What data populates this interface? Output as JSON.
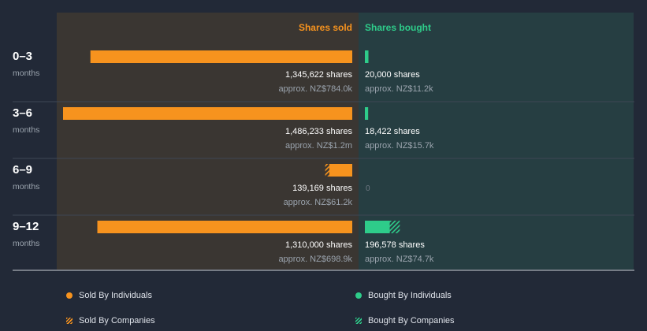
{
  "colors": {
    "background": "#222937",
    "sold_panel": "#3a3632",
    "bought_panel": "#263e42",
    "sold": "#f7931e",
    "bought": "#2ecc8a",
    "muted": "#9aa3ad",
    "text": "#ffffff"
  },
  "chart_data": {
    "type": "bar",
    "orientation": "horizontal-diverging",
    "headers": {
      "sold": "Shares sold",
      "bought": "Shares bought"
    },
    "rows": [
      {
        "period": "0–3",
        "unit": "months",
        "sold_individuals": 1345622,
        "sold_companies": 0,
        "sold_label": "1,345,622 shares",
        "sold_value": "approx. NZ$784.0k",
        "bought_individuals": 20000,
        "bought_companies": 0,
        "bought_label": "20,000 shares",
        "bought_value": "approx. NZ$11.2k"
      },
      {
        "period": "3–6",
        "unit": "months",
        "sold_individuals": 1486233,
        "sold_companies": 0,
        "sold_label": "1,486,233 shares",
        "sold_value": "approx. NZ$1.2m",
        "bought_individuals": 18422,
        "bought_companies": 0,
        "bought_label": "18,422 shares",
        "bought_value": "approx. NZ$15.7k"
      },
      {
        "period": "6–9",
        "unit": "months",
        "sold_individuals": 118000,
        "sold_companies": 21169,
        "sold_label": "139,169 shares",
        "sold_value": "approx. NZ$61.2k",
        "bought_individuals": 0,
        "bought_companies": 0,
        "bought_label": "0",
        "bought_value": ""
      },
      {
        "period": "9–12",
        "unit": "months",
        "sold_individuals": 1310000,
        "sold_companies": 0,
        "sold_label": "1,310,000 shares",
        "sold_value": "approx. NZ$698.9k",
        "bought_individuals": 140000,
        "bought_companies": 56578,
        "bought_label": "196,578 shares",
        "bought_value": "approx. NZ$74.7k"
      }
    ],
    "legend": [
      {
        "label": "Sold By Individuals",
        "style": "dot-sold"
      },
      {
        "label": "Bought By Individuals",
        "style": "dot-bought"
      },
      {
        "label": "Sold By Companies",
        "style": "hatch-sold"
      },
      {
        "label": "Bought By Companies",
        "style": "hatch-bought"
      }
    ]
  }
}
